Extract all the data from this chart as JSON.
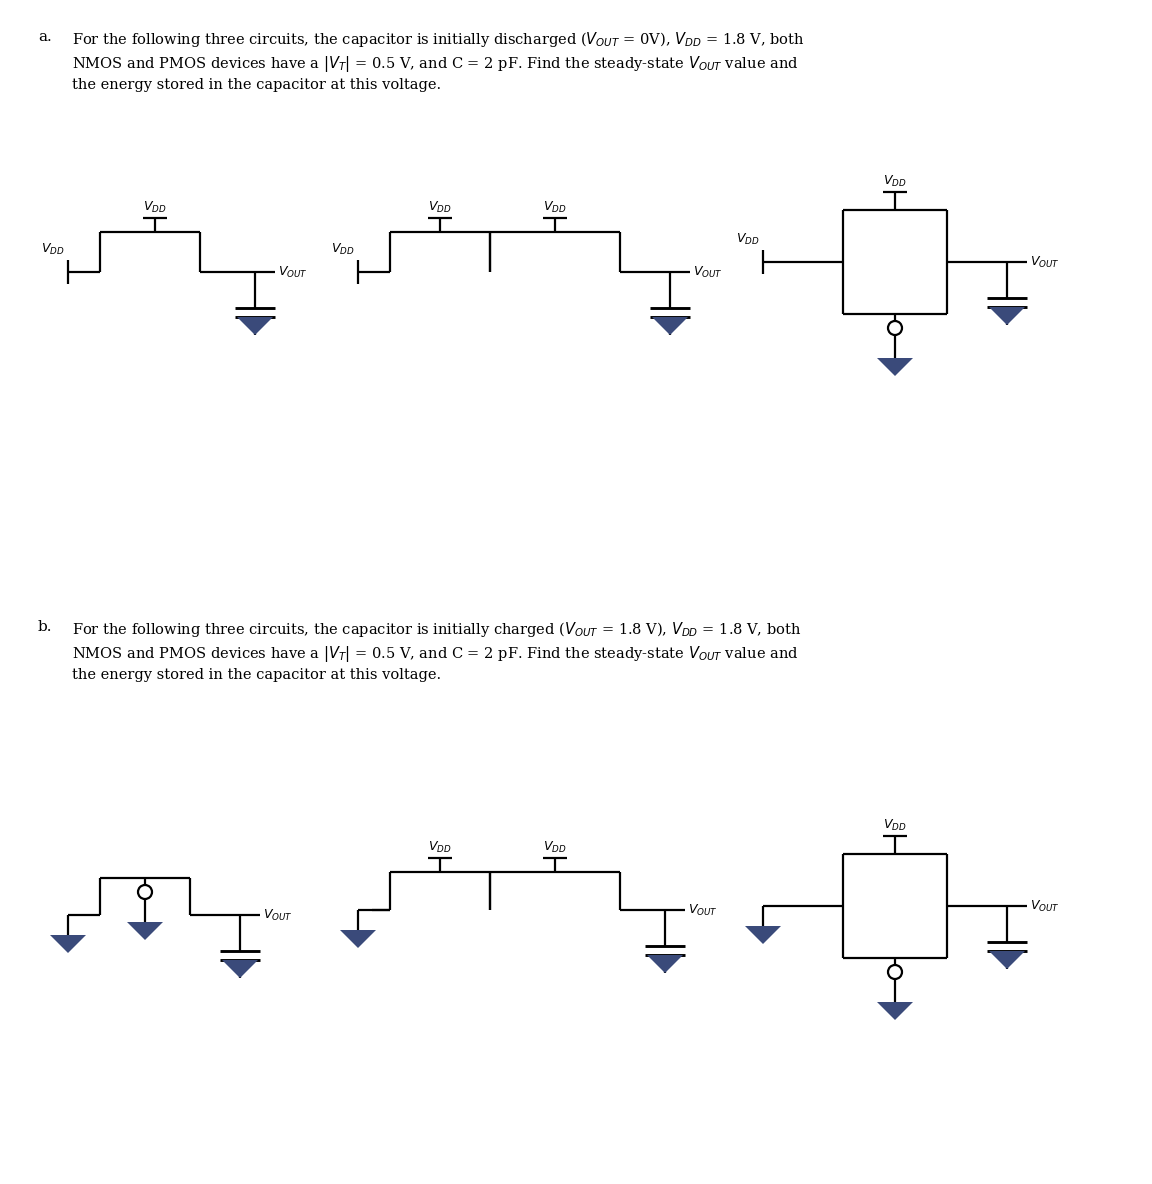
{
  "bg": "#ffffff",
  "lc": "#000000",
  "gc": "#3a4a7a",
  "lw": 1.6,
  "part_a_line1": "For the following three circuits, the capacitor is initially discharged ($V_{OUT}$ = 0V), $V_{DD}$ = 1.8 V, both",
  "part_a_line2": "NMOS and PMOS devices have a $|V_T|$ = 0.5 V, and C = 2 pF. Find the steady-state $V_{OUT}$ value and",
  "part_a_line3": "the energy stored in the capacitor at this voltage.",
  "part_b_line1": "For the following three circuits, the capacitor is initially charged ($V_{OUT}$ = 1.8 V), $V_{DD}$ = 1.8 V, both",
  "part_b_line2": "NMOS and PMOS devices have a $|V_T|$ = 0.5 V, and C = 2 pF. Find the steady-state $V_{OUT}$ value and",
  "part_b_line3": "the energy stored in the capacitor at this voltage."
}
